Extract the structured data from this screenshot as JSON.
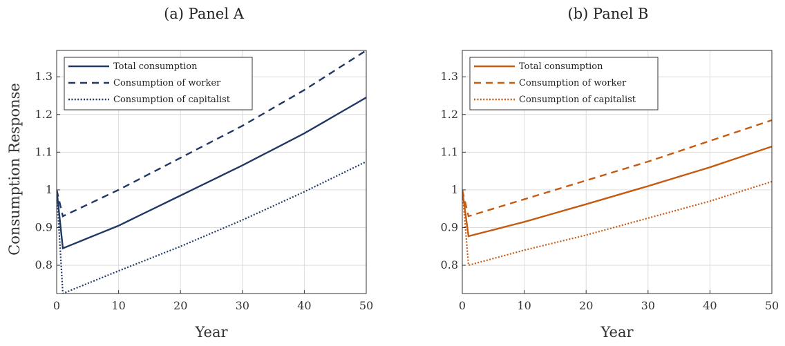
{
  "chart_data": [
    {
      "type": "line",
      "title": "(a) Panel A",
      "xlabel": "Year",
      "ylabel": "Consumption Response",
      "xlim": [
        0,
        50
      ],
      "ylim": [
        0.725,
        1.37
      ],
      "xticks": [
        "0",
        "10",
        "20",
        "30",
        "40",
        "50"
      ],
      "yticks": [
        "0.8",
        "0.9",
        "1",
        "1.1",
        "1.2",
        "1.3"
      ],
      "grid": true,
      "legend_position": "top-left",
      "color": "#1f3864",
      "series": [
        {
          "name": "Total consumption",
          "style": "solid",
          "x": [
            0,
            1,
            10,
            20,
            30,
            40,
            50
          ],
          "values": [
            1.0,
            0.845,
            0.905,
            0.985,
            1.065,
            1.15,
            1.245
          ]
        },
        {
          "name": "Consumption of worker",
          "style": "dashed",
          "x": [
            0,
            1,
            10,
            20,
            30,
            40,
            50
          ],
          "values": [
            1.0,
            0.93,
            1.0,
            1.085,
            1.17,
            1.265,
            1.37
          ]
        },
        {
          "name": "Consumption of capitalist",
          "style": "dotted",
          "x": [
            0,
            1,
            10,
            20,
            30,
            40,
            50
          ],
          "values": [
            1.0,
            0.725,
            0.785,
            0.85,
            0.92,
            0.995,
            1.075
          ]
        }
      ]
    },
    {
      "type": "line",
      "title": "(b) Panel B",
      "xlabel": "Year",
      "ylabel": "",
      "xlim": [
        0,
        50
      ],
      "ylim": [
        0.725,
        1.37
      ],
      "xticks": [
        "0",
        "10",
        "20",
        "30",
        "40",
        "50"
      ],
      "yticks": [
        "0.8",
        "0.9",
        "1",
        "1.1",
        "1.2",
        "1.3"
      ],
      "grid": true,
      "legend_position": "top-left",
      "color": "#c55a11",
      "series": [
        {
          "name": "Total consumption",
          "style": "solid",
          "x": [
            0,
            1,
            10,
            20,
            30,
            40,
            50
          ],
          "values": [
            1.0,
            0.877,
            0.915,
            0.962,
            1.01,
            1.06,
            1.115
          ]
        },
        {
          "name": "Consumption of worker",
          "style": "dashed",
          "x": [
            0,
            1,
            10,
            20,
            30,
            40,
            50
          ],
          "values": [
            1.0,
            0.93,
            0.975,
            1.025,
            1.075,
            1.13,
            1.185
          ]
        },
        {
          "name": "Consumption of capitalist",
          "style": "dotted",
          "x": [
            0,
            1,
            10,
            20,
            30,
            40,
            50
          ],
          "values": [
            1.0,
            0.8,
            0.84,
            0.88,
            0.925,
            0.97,
            1.022
          ]
        }
      ]
    }
  ]
}
